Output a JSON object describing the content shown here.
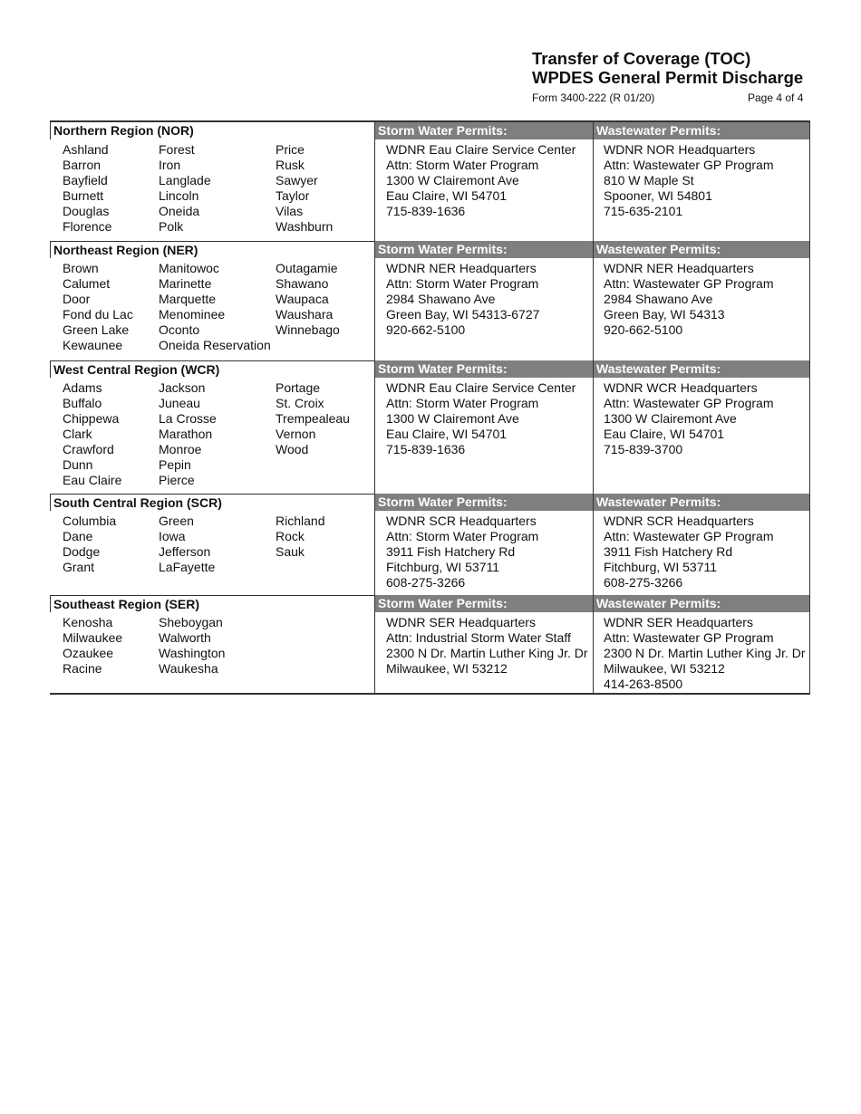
{
  "header": {
    "title_line1": "Transfer of Coverage (TOC)",
    "title_line2": "WPDES General Permit Discharge",
    "form_number": "Form 3400-222  (R 01/20)",
    "page": "Page 4 of 4"
  },
  "storm_label": "Storm Water Permits:",
  "wastewater_label": "Wastewater Permits:",
  "regions": [
    {
      "name": "Northern Region (NOR)",
      "counties": [
        [
          "Ashland",
          "Barron",
          "Bayfield",
          "Burnett",
          "Douglas",
          "Florence"
        ],
        [
          "Forest",
          "Iron",
          "Langlade",
          "Lincoln",
          "Oneida",
          "Polk"
        ],
        [
          "Price",
          "Rusk",
          "Sawyer",
          "Taylor",
          "Vilas",
          "Washburn"
        ]
      ],
      "storm": [
        "WDNR Eau Claire Service Center",
        "Attn: Storm Water Program",
        "1300 W Clairemont Ave",
        "Eau Claire, WI 54701",
        "715-839-1636"
      ],
      "wastewater": [
        "WDNR NOR Headquarters",
        "Attn: Wastewater GP Program",
        "810 W Maple St",
        "Spooner, WI 54801",
        "715-635-2101"
      ]
    },
    {
      "name": "Northeast Region (NER)",
      "counties": [
        [
          "Brown",
          "Calumet",
          "Door",
          "Fond du Lac",
          "Green Lake",
          "Kewaunee"
        ],
        [
          "Manitowoc",
          "Marinette",
          "Marquette",
          "Menominee",
          "Oconto",
          "Oneida Reservation"
        ],
        [
          "Outagamie",
          "Shawano",
          "Waupaca",
          "Waushara",
          "Winnebago"
        ]
      ],
      "storm": [
        "WDNR NER Headquarters",
        "Attn: Storm Water Program",
        "2984 Shawano Ave",
        "Green Bay, WI 54313-6727",
        "920-662-5100"
      ],
      "wastewater": [
        "WDNR NER Headquarters",
        "Attn: Wastewater GP Program",
        "2984 Shawano Ave",
        "Green Bay, WI 54313",
        "920-662-5100"
      ]
    },
    {
      "name": "West Central Region (WCR)",
      "counties": [
        [
          "Adams",
          "Buffalo",
          "Chippewa",
          "Clark",
          "Crawford",
          "Dunn",
          "Eau Claire"
        ],
        [
          "Jackson",
          "Juneau",
          "La Crosse",
          "Marathon",
          "Monroe",
          "Pepin",
          "Pierce"
        ],
        [
          "Portage",
          "St. Croix",
          "Trempealeau",
          "Vernon",
          "Wood"
        ]
      ],
      "storm": [
        "WDNR Eau Claire Service Center",
        "Attn: Storm Water Program",
        "1300 W Clairemont Ave",
        "Eau Claire, WI 54701",
        "715-839-1636"
      ],
      "wastewater": [
        "WDNR WCR Headquarters",
        "Attn: Wastewater GP Program",
        "1300 W Clairemont Ave",
        "Eau Claire, WI 54701",
        "715-839-3700"
      ]
    },
    {
      "name": "South Central Region (SCR)",
      "counties": [
        [
          "Columbia",
          "Dane",
          "Dodge",
          "Grant"
        ],
        [
          "Green",
          "Iowa",
          "Jefferson",
          "LaFayette"
        ],
        [
          "Richland",
          "Rock",
          "Sauk"
        ]
      ],
      "storm": [
        "WDNR SCR Headquarters",
        "Attn: Storm Water Program",
        "3911 Fish Hatchery Rd",
        "Fitchburg, WI 53711",
        "608-275-3266"
      ],
      "wastewater": [
        "WDNR SCR Headquarters",
        "Attn: Wastewater GP Program",
        "3911 Fish Hatchery Rd",
        "Fitchburg, WI 53711",
        "608-275-3266"
      ]
    },
    {
      "name": "Southeast Region (SER)",
      "counties": [
        [
          "Kenosha",
          "Milwaukee",
          "Ozaukee",
          "Racine"
        ],
        [
          "Sheboygan",
          "Walworth",
          "Washington",
          "Waukesha"
        ],
        []
      ],
      "storm": [
        "WDNR SER Headquarters",
        "Attn: Industrial Storm Water Staff",
        "2300 N Dr. Martin Luther King Jr. Dr",
        "Milwaukee, WI 53212"
      ],
      "wastewater": [
        "WDNR SER Headquarters",
        "Attn: Wastewater GP Program",
        "2300 N Dr. Martin Luther King Jr. Dr",
        "Milwaukee, WI 53212",
        "414-263-8500"
      ]
    }
  ]
}
